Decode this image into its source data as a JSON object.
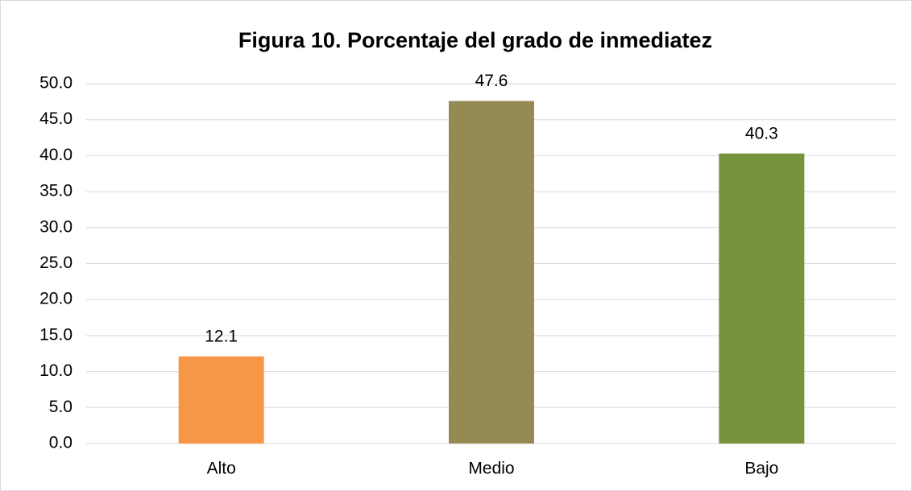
{
  "chart_data": {
    "type": "bar",
    "title": "Figura 10. Porcentaje del grado de inmediatez",
    "categories": [
      "Alto",
      "Medio",
      "Bajo"
    ],
    "values": [
      12.1,
      47.6,
      40.3
    ],
    "colors": [
      "#f79646",
      "#948a54",
      "#77933c"
    ],
    "ylim": [
      0,
      50
    ],
    "yticks": [
      {
        "value": 0,
        "label": "0.0"
      },
      {
        "value": 5,
        "label": "5.0"
      },
      {
        "value": 10,
        "label": "10.0"
      },
      {
        "value": 15,
        "label": "15.0"
      },
      {
        "value": 20,
        "label": "20.0"
      },
      {
        "value": 25,
        "label": "25.0"
      },
      {
        "value": 30,
        "label": "30.0"
      },
      {
        "value": 35,
        "label": "35.0"
      },
      {
        "value": 40,
        "label": "40.0"
      },
      {
        "value": 45,
        "label": "45.0"
      },
      {
        "value": 50,
        "label": "50.0"
      }
    ],
    "grid": true
  }
}
